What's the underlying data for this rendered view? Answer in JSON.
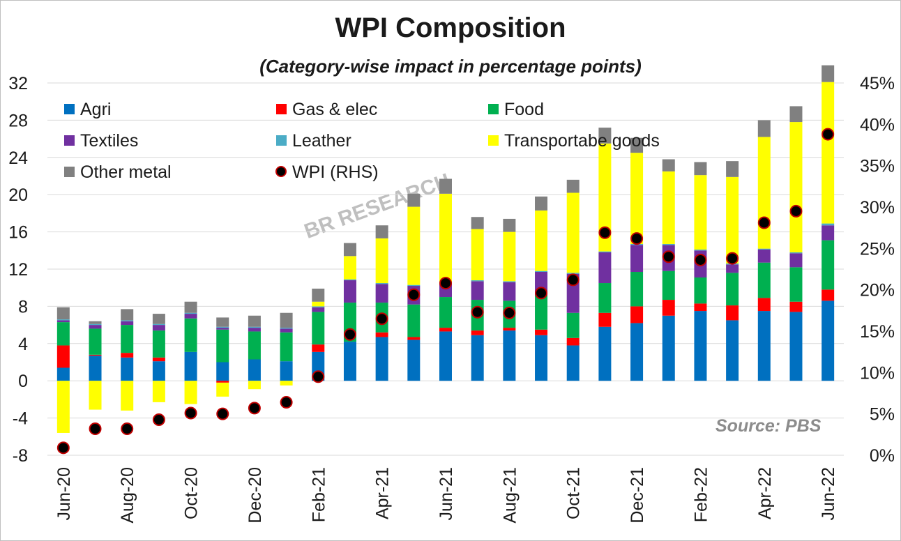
{
  "chart_data": {
    "type": "bar",
    "stacked": true,
    "title": "WPI Composition",
    "subtitle": "(Category-wise impact in percentage points)",
    "source": "Source: PBS",
    "watermark": "BR RESEARCH",
    "ylim": [
      -8,
      32
    ],
    "yticks": [
      -8,
      -4,
      0,
      4,
      8,
      12,
      16,
      20,
      24,
      28,
      32
    ],
    "y2lim": [
      0,
      45
    ],
    "y2ticks": [
      "0%",
      "5%",
      "10%",
      "15%",
      "20%",
      "25%",
      "30%",
      "35%",
      "40%",
      "45%"
    ],
    "y2values": [
      0,
      5,
      10,
      15,
      20,
      25,
      30,
      35,
      40,
      45
    ],
    "grid": true,
    "legend_position": "top-left",
    "categories": [
      "Jun-20",
      "Jul-20",
      "Aug-20",
      "Sep-20",
      "Oct-20",
      "Nov-20",
      "Dec-20",
      "Jan-21",
      "Feb-21",
      "Mar-21",
      "Apr-21",
      "May-21",
      "Jun-21",
      "Jul-21",
      "Aug-21",
      "Sep-21",
      "Oct-21",
      "Nov-21",
      "Dec-21",
      "Jan-22",
      "Feb-22",
      "Mar-22",
      "Apr-22",
      "May-22",
      "Jun-22"
    ],
    "xtick_labels": [
      "Jun-20",
      "",
      "Aug-20",
      "",
      "Oct-20",
      "",
      "Dec-20",
      "",
      "Feb-21",
      "",
      "Apr-21",
      "",
      "Jun-21",
      "",
      "Aug-21",
      "",
      "Oct-21",
      "",
      "Dec-21",
      "",
      "Feb-22",
      "",
      "Apr-22",
      "",
      "Jun-22"
    ],
    "series": [
      {
        "name": "Agri",
        "color": "#0070c0",
        "values": [
          1.4,
          2.7,
          2.5,
          2.1,
          3.1,
          2.0,
          2.3,
          2.1,
          3.1,
          4.2,
          4.7,
          4.4,
          5.3,
          4.9,
          5.4,
          4.9,
          3.8,
          5.8,
          6.2,
          7.0,
          7.5,
          6.5,
          7.5,
          7.4,
          8.6
        ]
      },
      {
        "name": "Gas & elec",
        "color": "#ff0000",
        "values": [
          2.4,
          0.1,
          0.5,
          0.4,
          0.0,
          -0.2,
          0.0,
          0.0,
          0.8,
          0.0,
          0.5,
          0.3,
          0.4,
          0.5,
          0.3,
          0.6,
          0.8,
          1.5,
          1.8,
          1.7,
          0.8,
          1.6,
          1.4,
          1.1,
          1.2
        ]
      },
      {
        "name": "Food",
        "color": "#00b050",
        "values": [
          2.5,
          2.8,
          3.0,
          2.9,
          3.6,
          3.5,
          3.0,
          3.1,
          3.5,
          4.2,
          3.2,
          3.5,
          3.3,
          3.3,
          2.9,
          3.7,
          2.7,
          3.2,
          3.7,
          3.1,
          2.8,
          3.5,
          3.8,
          3.7,
          5.3
        ]
      },
      {
        "name": "Textiles",
        "color": "#7030a0",
        "values": [
          0.2,
          0.4,
          0.4,
          0.6,
          0.5,
          0.2,
          0.4,
          0.4,
          0.5,
          2.4,
          2.0,
          2.0,
          1.5,
          2.0,
          2.0,
          2.5,
          4.2,
          3.3,
          2.9,
          2.8,
          2.9,
          0.9,
          1.4,
          1.5,
          1.6
        ]
      },
      {
        "name": "Leather",
        "color": "#4bacc6",
        "values": [
          0.1,
          0.1,
          0.1,
          0.1,
          0.1,
          0.1,
          0.1,
          0.1,
          0.1,
          0.1,
          0.1,
          0.1,
          0.1,
          0.1,
          0.1,
          0.1,
          0.1,
          0.1,
          0.1,
          0.1,
          0.1,
          0.1,
          0.1,
          0.1,
          0.2
        ]
      },
      {
        "name": "Transportabe goods",
        "color": "#ffff00",
        "values": [
          -5.6,
          -3.1,
          -3.2,
          -2.3,
          -2.5,
          -1.5,
          -0.9,
          -0.5,
          0.5,
          2.5,
          4.8,
          8.4,
          9.5,
          5.5,
          5.3,
          6.5,
          8.6,
          11.6,
          9.8,
          7.8,
          8.0,
          9.3,
          12.0,
          14.0,
          15.2
        ]
      },
      {
        "name": "Other metal",
        "color": "#808080",
        "values": [
          1.3,
          0.3,
          1.2,
          1.1,
          1.2,
          1.0,
          1.2,
          1.6,
          1.4,
          1.4,
          1.4,
          1.4,
          1.6,
          1.3,
          1.4,
          1.5,
          1.4,
          1.7,
          1.6,
          1.3,
          1.4,
          1.7,
          1.8,
          1.7,
          1.8
        ]
      }
    ],
    "line_series": {
      "name": "WPI (RHS)",
      "axis": "right",
      "marker_fill": "#000000",
      "marker_edge": "#c00000",
      "values": [
        0.9,
        3.2,
        3.2,
        4.3,
        5.1,
        5.0,
        5.7,
        6.4,
        9.5,
        14.6,
        16.5,
        19.4,
        20.8,
        17.3,
        17.2,
        19.6,
        21.2,
        26.9,
        26.2,
        24.0,
        23.6,
        23.8,
        28.1,
        29.5,
        38.8
      ]
    }
  }
}
